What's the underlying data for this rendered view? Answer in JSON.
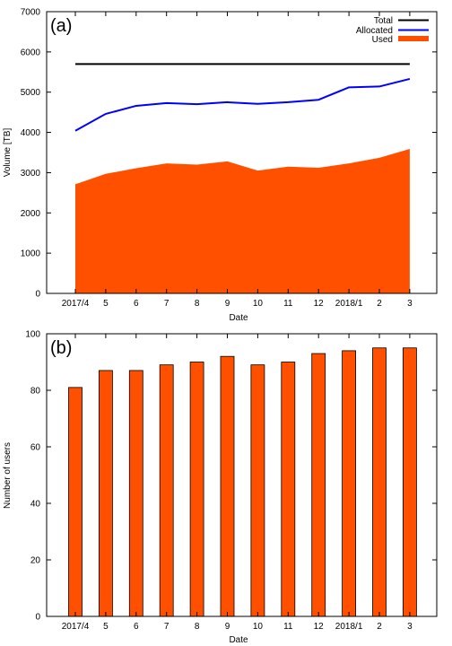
{
  "chart_data": [
    {
      "type": "area",
      "panel_label": "(a)",
      "xlabel": "Date",
      "ylabel": "Volume [TB]",
      "categories": [
        "2017/4",
        "5",
        "6",
        "7",
        "8",
        "9",
        "10",
        "11",
        "12",
        "2018/1",
        "2",
        "3"
      ],
      "ylim": [
        0,
        7000
      ],
      "yticks": [
        0,
        1000,
        2000,
        3000,
        4000,
        5000,
        6000,
        7000
      ],
      "grid": false,
      "legend_position": "top-right",
      "series": [
        {
          "name": "Total",
          "kind": "line",
          "color": "#000000",
          "values": [
            5700,
            5700,
            5700,
            5700,
            5700,
            5700,
            5700,
            5700,
            5700,
            5700,
            5700,
            5700
          ]
        },
        {
          "name": "Allocated",
          "kind": "line",
          "color": "#0000ff",
          "values": [
            4040,
            4460,
            4660,
            4730,
            4700,
            4750,
            4710,
            4750,
            4810,
            5120,
            5140,
            5330
          ]
        },
        {
          "name": "Used",
          "kind": "area",
          "color": "#ff5000",
          "values": [
            2710,
            2970,
            3110,
            3230,
            3200,
            3280,
            3050,
            3150,
            3120,
            3230,
            3370,
            3590
          ]
        }
      ]
    },
    {
      "type": "bar",
      "panel_label": "(b)",
      "xlabel": "Date",
      "ylabel": "Number of users",
      "categories": [
        "2017/4",
        "5",
        "6",
        "7",
        "8",
        "9",
        "10",
        "11",
        "12",
        "2018/1",
        "2",
        "3"
      ],
      "values": [
        81,
        87,
        87,
        89,
        90,
        92,
        89,
        90,
        93,
        94,
        95,
        95
      ],
      "ylim": [
        0,
        100
      ],
      "yticks": [
        0,
        20,
        40,
        60,
        80,
        100
      ],
      "grid": false,
      "color": "#ff5000"
    }
  ]
}
